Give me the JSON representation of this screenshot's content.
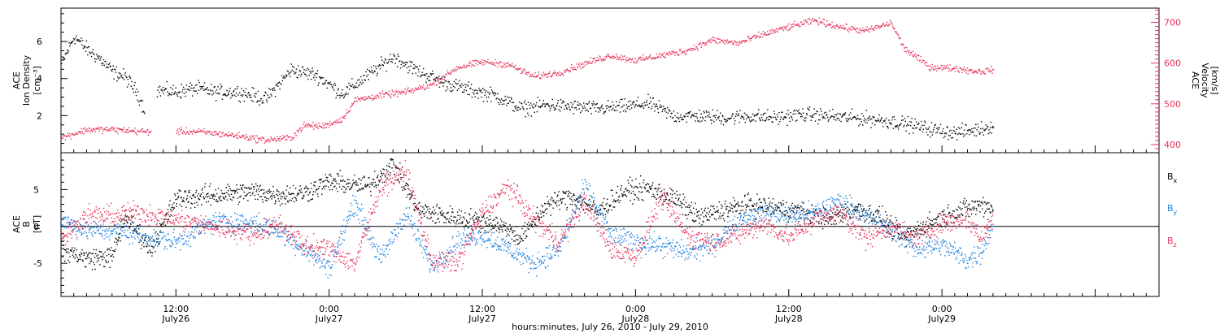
{
  "chart_data": [
    {
      "type": "scatter",
      "panel": "top",
      "xlim": [
        "2010-07-26 03:00",
        "2010-07-29 17:00"
      ],
      "left_axis": {
        "label_lines": [
          "ACE",
          "Ion Density",
          "[cm⁻³]"
        ],
        "ylim": [
          0,
          7.8
        ],
        "ticks": [
          2,
          4,
          6
        ],
        "tick_labels": [
          "2",
          "4",
          "6"
        ]
      },
      "right_axis": {
        "label_lines": [
          "ACE",
          "Velocity",
          "[km/s]"
        ],
        "ylim": [
          380,
          735
        ],
        "ticks": [
          400,
          500,
          600,
          700
        ],
        "tick_labels": [
          "400",
          "500",
          "600",
          "700"
        ],
        "color": "#e8325a"
      },
      "series": [
        {
          "axis": "left",
          "color": "#000000",
          "gap": [
            "2010-07-26 09:30",
            "2010-07-26 10:30"
          ],
          "points": [
            [
              "2010-07-26 03:00",
              4.8
            ],
            [
              "2010-07-26 04:00",
              6.3
            ],
            [
              "2010-07-26 05:00",
              5.6
            ],
            [
              "2010-07-26 06:00",
              5.1
            ],
            [
              "2010-07-26 07:00",
              4.4
            ],
            [
              "2010-07-26 08:00",
              4.1
            ],
            [
              "2010-07-26 09:00",
              3.2
            ],
            [
              "2010-07-26 09:30",
              2.3
            ],
            [
              "2010-07-26 10:30",
              3.4
            ],
            [
              "2010-07-26 12:00",
              3.3
            ],
            [
              "2010-07-26 13:30",
              3.5
            ],
            [
              "2010-07-26 15:00",
              3.3
            ],
            [
              "2010-07-26 17:00",
              3.3
            ],
            [
              "2010-07-26 19:00",
              2.9
            ],
            [
              "2010-07-26 21:00",
              4.5
            ],
            [
              "2010-07-26 23:00",
              4.2
            ],
            [
              "2010-07-27 01:00",
              3.2
            ],
            [
              "2010-07-27 03:00",
              4.2
            ],
            [
              "2010-07-27 05:00",
              5.2
            ],
            [
              "2010-07-27 07:00",
              4.4
            ],
            [
              "2010-07-27 09:00",
              3.8
            ],
            [
              "2010-07-27 11:00",
              3.4
            ],
            [
              "2010-07-27 13:00",
              3.1
            ],
            [
              "2010-07-27 15:00",
              2.4
            ],
            [
              "2010-07-27 17:00",
              2.6
            ],
            [
              "2010-07-27 19:00",
              2.5
            ],
            [
              "2010-07-27 21:00",
              2.4
            ],
            [
              "2010-07-27 23:00",
              2.5
            ],
            [
              "2010-07-28 01:00",
              2.7
            ],
            [
              "2010-07-28 03:00",
              2.0
            ],
            [
              "2010-07-28 05:00",
              2.0
            ],
            [
              "2010-07-28 07:00",
              1.9
            ],
            [
              "2010-07-28 09:00",
              2.0
            ],
            [
              "2010-07-28 11:00",
              1.9
            ],
            [
              "2010-07-28 13:00",
              2.1
            ],
            [
              "2010-07-28 15:00",
              2.0
            ],
            [
              "2010-07-28 17:00",
              1.9
            ],
            [
              "2010-07-28 19:00",
              1.8
            ],
            [
              "2010-07-28 21:00",
              1.6
            ],
            [
              "2010-07-28 23:00",
              1.3
            ],
            [
              "2010-07-29 01:00",
              1.1
            ],
            [
              "2010-07-29 03:00",
              1.3
            ],
            [
              "2010-07-29 04:00",
              1.5
            ]
          ]
        },
        {
          "axis": "right",
          "color": "#e8325a",
          "gap": [
            "2010-07-26 10:00",
            "2010-07-26 12:00"
          ],
          "points": [
            [
              "2010-07-26 03:00",
              418
            ],
            [
              "2010-07-26 05:00",
              438
            ],
            [
              "2010-07-26 07:00",
              438
            ],
            [
              "2010-07-26 09:00",
              434
            ],
            [
              "2010-07-26 10:00",
              432
            ],
            [
              "2010-07-26 12:00",
              434
            ],
            [
              "2010-07-26 14:00",
              432
            ],
            [
              "2010-07-26 17:00",
              422
            ],
            [
              "2010-07-26 19:00",
              412
            ],
            [
              "2010-07-26 21:00",
              418
            ],
            [
              "2010-07-26 22:00",
              448
            ],
            [
              "2010-07-26 23:30",
              446
            ],
            [
              "2010-07-27 01:00",
              464
            ],
            [
              "2010-07-27 02:00",
              510
            ],
            [
              "2010-07-27 04:00",
              522
            ],
            [
              "2010-07-27 06:00",
              530
            ],
            [
              "2010-07-27 08:00",
              548
            ],
            [
              "2010-07-27 10:00",
              590
            ],
            [
              "2010-07-27 12:00",
              604
            ],
            [
              "2010-07-27 14:00",
              598
            ],
            [
              "2010-07-27 16:00",
              568
            ],
            [
              "2010-07-27 18:00",
              578
            ],
            [
              "2010-07-27 20:00",
              600
            ],
            [
              "2010-07-27 22:00",
              620
            ],
            [
              "2010-07-28 00:00",
              608
            ],
            [
              "2010-07-28 02:00",
              620
            ],
            [
              "2010-07-28 04:00",
              632
            ],
            [
              "2010-07-28 06:00",
              658
            ],
            [
              "2010-07-28 08:00",
              650
            ],
            [
              "2010-07-28 10:00",
              672
            ],
            [
              "2010-07-28 12:00",
              690
            ],
            [
              "2010-07-28 14:00",
              706
            ],
            [
              "2010-07-28 16:00",
              690
            ],
            [
              "2010-07-28 18:00",
              680
            ],
            [
              "2010-07-28 20:00",
              700
            ],
            [
              "2010-07-28 21:00",
              638
            ],
            [
              "2010-07-28 23:00",
              592
            ],
            [
              "2010-07-29 01:00",
              588
            ],
            [
              "2010-07-29 03:00",
              580
            ],
            [
              "2010-07-29 04:00",
              586
            ]
          ]
        }
      ]
    },
    {
      "type": "scatter",
      "panel": "bottom",
      "xlim": [
        "2010-07-26 03:00",
        "2010-07-29 17:00"
      ],
      "x_ticks": [
        "2010-07-26 12:00",
        "2010-07-27 00:00",
        "2010-07-27 12:00",
        "2010-07-28 00:00",
        "2010-07-28 12:00",
        "2010-07-29 00:00"
      ],
      "x_tick_time_labels": [
        "12:00",
        "0:00",
        "12:00",
        "0:00",
        "12:00",
        "0:00"
      ],
      "x_tick_date_labels": [
        "July26",
        "July27",
        "July27",
        "July28",
        "July28",
        "July29"
      ],
      "xlabel": "hours:minutes, July 26, 2010 - July 29, 2010",
      "left_axis": {
        "label_lines": [
          "ACE",
          "B",
          "[nT]"
        ],
        "ylim": [
          -9.5,
          10
        ],
        "ticks": [
          -5,
          0,
          5
        ],
        "tick_labels": [
          "-5",
          "0",
          "5"
        ]
      },
      "zero_line": true,
      "legend_position": "right",
      "series": [
        {
          "name": "Bx",
          "legend_main": "B",
          "legend_sub": "x",
          "color": "#000000",
          "points": [
            [
              "2010-07-26 03:00",
              -3
            ],
            [
              "2010-07-26 05:00",
              -4.3
            ],
            [
              "2010-07-26 07:00",
              -4
            ],
            [
              "2010-07-26 08:00",
              1.5
            ],
            [
              "2010-07-26 10:00",
              -3
            ],
            [
              "2010-07-26 12:00",
              3.8
            ],
            [
              "2010-07-26 15:00",
              4.3
            ],
            [
              "2010-07-26 18:00",
              4.8
            ],
            [
              "2010-07-26 20:00",
              4.3
            ],
            [
              "2010-07-26 22:00",
              4.6
            ],
            [
              "2010-07-27 00:00",
              6.1
            ],
            [
              "2010-07-27 03:00",
              5.5
            ],
            [
              "2010-07-27 05:00",
              8.5
            ],
            [
              "2010-07-27 07:00",
              2.2
            ],
            [
              "2010-07-27 09:00",
              1.5
            ],
            [
              "2010-07-27 11:00",
              1.0
            ],
            [
              "2010-07-27 13:00",
              0.5
            ],
            [
              "2010-07-27 15:00",
              -1.5
            ],
            [
              "2010-07-27 17:00",
              3.0
            ],
            [
              "2010-07-27 19:00",
              4.2
            ],
            [
              "2010-07-27 21:00",
              2.0
            ],
            [
              "2010-07-27 23:00",
              4.8
            ],
            [
              "2010-07-28 01:00",
              5.2
            ],
            [
              "2010-07-28 03:00",
              3.8
            ],
            [
              "2010-07-28 05:00",
              1.2
            ],
            [
              "2010-07-28 07:00",
              2.4
            ],
            [
              "2010-07-28 09:00",
              3.0
            ],
            [
              "2010-07-28 11:00",
              2.6
            ],
            [
              "2010-07-28 13:00",
              2.0
            ],
            [
              "2010-07-28 15:00",
              1.0
            ],
            [
              "2010-07-28 17:00",
              2.5
            ],
            [
              "2010-07-28 19:00",
              1.5
            ],
            [
              "2010-07-28 21:00",
              -1.5
            ],
            [
              "2010-07-28 23:00",
              0.5
            ],
            [
              "2010-07-29 01:00",
              2.0
            ],
            [
              "2010-07-29 03:00",
              3.0
            ],
            [
              "2010-07-29 04:00",
              2.5
            ]
          ]
        },
        {
          "name": "By",
          "legend_main": "B",
          "legend_sub": "y",
          "color": "#1a80e0",
          "points": [
            [
              "2010-07-26 03:00",
              1
            ],
            [
              "2010-07-26 05:00",
              -0.5
            ],
            [
              "2010-07-26 07:00",
              -0.5
            ],
            [
              "2010-07-26 09:00",
              -1
            ],
            [
              "2010-07-26 12:00",
              -2
            ],
            [
              "2010-07-26 15:00",
              0.8
            ],
            [
              "2010-07-26 18:00",
              0.5
            ],
            [
              "2010-07-26 20:00",
              -0.5
            ],
            [
              "2010-07-26 22:00",
              -3
            ],
            [
              "2010-07-27 00:00",
              -5.5
            ],
            [
              "2010-07-27 02:00",
              3.5
            ],
            [
              "2010-07-27 04:00",
              -4.5
            ],
            [
              "2010-07-27 06:00",
              2.0
            ],
            [
              "2010-07-27 08:00",
              -5.5
            ],
            [
              "2010-07-27 10:00",
              -2.0
            ],
            [
              "2010-07-27 12:00",
              -1.0
            ],
            [
              "2010-07-27 14:00",
              -3.0
            ],
            [
              "2010-07-27 16:00",
              -5.0
            ],
            [
              "2010-07-27 18:00",
              -3.0
            ],
            [
              "2010-07-27 20:00",
              5.5
            ],
            [
              "2010-07-27 22:00",
              -1.0
            ],
            [
              "2010-07-28 00:00",
              -2.0
            ],
            [
              "2010-07-28 02:00",
              -2.5
            ],
            [
              "2010-07-28 04:00",
              -3.5
            ],
            [
              "2010-07-28 06:00",
              -2.5
            ],
            [
              "2010-07-28 08:00",
              1.0
            ],
            [
              "2010-07-28 10:00",
              2.0
            ],
            [
              "2010-07-28 12:00",
              1.5
            ],
            [
              "2010-07-28 14:00",
              2.0
            ],
            [
              "2010-07-28 16:00",
              3.5
            ],
            [
              "2010-07-28 18:00",
              1.5
            ],
            [
              "2010-07-28 20:00",
              -0.5
            ],
            [
              "2010-07-28 22:00",
              -3.0
            ],
            [
              "2010-07-29 00:00",
              -2.5
            ],
            [
              "2010-07-29 02:00",
              -4.5
            ],
            [
              "2010-07-29 03:00",
              -3.5
            ],
            [
              "2010-07-29 04:00",
              0.5
            ]
          ]
        },
        {
          "name": "Bz",
          "legend_main": "B",
          "legend_sub": "z",
          "color": "#e8325a",
          "points": [
            [
              "2010-07-26 03:00",
              -1.5
            ],
            [
              "2010-07-26 05:00",
              1.5
            ],
            [
              "2010-07-26 07:00",
              1.5
            ],
            [
              "2010-07-26 09:00",
              2.0
            ],
            [
              "2010-07-26 12:00",
              1.0
            ],
            [
              "2010-07-26 15:00",
              0.0
            ],
            [
              "2010-07-26 18:00",
              -1.0
            ],
            [
              "2010-07-26 20:00",
              0.5
            ],
            [
              "2010-07-26 22:00",
              -2.5
            ],
            [
              "2010-07-27 00:00",
              -3.0
            ],
            [
              "2010-07-27 02:00",
              -5.0
            ],
            [
              "2010-07-27 04:00",
              5.5
            ],
            [
              "2010-07-27 06:00",
              7.5
            ],
            [
              "2010-07-27 08:00",
              -4.5
            ],
            [
              "2010-07-27 10:00",
              -5.0
            ],
            [
              "2010-07-27 12:00",
              2.0
            ],
            [
              "2010-07-27 14:00",
              5.5
            ],
            [
              "2010-07-27 16:00",
              1.0
            ],
            [
              "2010-07-27 18:00",
              -2.0
            ],
            [
              "2010-07-27 20:00",
              3.5
            ],
            [
              "2010-07-27 22:00",
              -3.0
            ],
            [
              "2010-07-28 00:00",
              -4.0
            ],
            [
              "2010-07-28 02:00",
              4.0
            ],
            [
              "2010-07-28 04:00",
              -1.0
            ],
            [
              "2010-07-28 06:00",
              -2.0
            ],
            [
              "2010-07-28 08:00",
              -1.0
            ],
            [
              "2010-07-28 10:00",
              0.5
            ],
            [
              "2010-07-28 12:00",
              -1.5
            ],
            [
              "2010-07-28 14:00",
              1.0
            ],
            [
              "2010-07-28 16:00",
              2.0
            ],
            [
              "2010-07-28 18:00",
              -1.5
            ],
            [
              "2010-07-28 20:00",
              0.0
            ],
            [
              "2010-07-28 22:00",
              -1.5
            ],
            [
              "2010-07-29 00:00",
              0.5
            ],
            [
              "2010-07-29 02:00",
              1.0
            ],
            [
              "2010-07-29 03:00",
              -1.5
            ],
            [
              "2010-07-29 04:00",
              1.0
            ]
          ]
        }
      ]
    }
  ]
}
